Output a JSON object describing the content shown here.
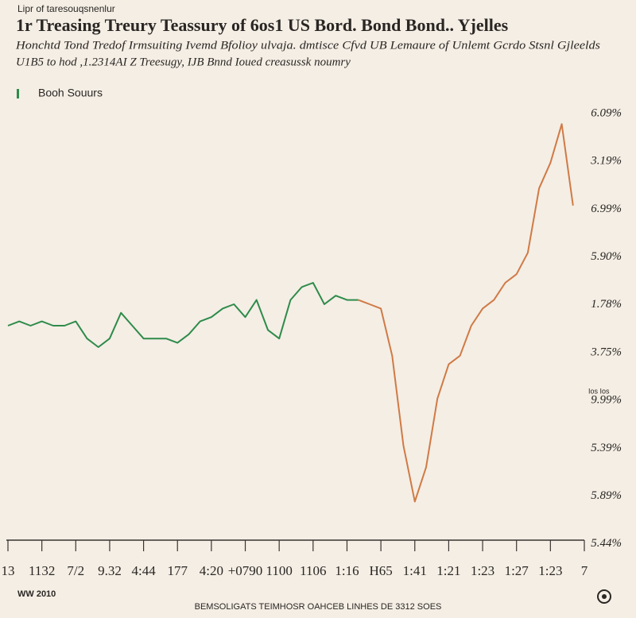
{
  "chart_data": {
    "type": "line",
    "kicker": "Lipr of taresouqsnenlur",
    "title": "1r Treasing Treury Teassury of 6os1 US Bord. Bond Bond.. Yjelles",
    "subtitle": [
      "Honchtd Tond Tredof Irmsuiting Ivemd Bfolioy ulvaja. dmtisce Cfvd UB Lemaure of Unlemt Gcrdo Stsnl Gjleelds",
      "U1B5 to hod ,1.2314AI Z Treesugy, IJB Bnnd Ioued creasussk noumry"
    ],
    "x": [
      0,
      1,
      2,
      3,
      4,
      5,
      6,
      7,
      8,
      9,
      10,
      11,
      12,
      13,
      14,
      15,
      16,
      17,
      18,
      19,
      20,
      21,
      22,
      23,
      24,
      25,
      26,
      27,
      28,
      29,
      30,
      31,
      32,
      33,
      34,
      35,
      36,
      37,
      38,
      39,
      40,
      41,
      42,
      43,
      44,
      45,
      46,
      47,
      48,
      49,
      50
    ],
    "series": [
      {
        "name": "Booh Souurs",
        "color": "#2e8b4a",
        "values": [
          50,
          51,
          50,
          51,
          50,
          50,
          51,
          47,
          45,
          47,
          53,
          50,
          47,
          47,
          47,
          46,
          48,
          51,
          52,
          54,
          55,
          52,
          56,
          49,
          47,
          56,
          59,
          60,
          55,
          57,
          56,
          56,
          null,
          null,
          null,
          null,
          null,
          null,
          null,
          null,
          null,
          null,
          null,
          null,
          null,
          null,
          null,
          null,
          null,
          null,
          null
        ]
      },
      {
        "color": "#d07a45",
        "values": [
          null,
          null,
          null,
          null,
          null,
          null,
          null,
          null,
          null,
          null,
          null,
          null,
          null,
          null,
          null,
          null,
          null,
          null,
          null,
          null,
          null,
          null,
          null,
          null,
          null,
          null,
          null,
          null,
          null,
          null,
          null,
          56,
          55,
          54,
          43,
          22,
          9,
          17,
          33,
          41,
          43,
          50,
          54,
          56,
          60,
          62,
          67,
          82,
          88,
          97,
          78
        ]
      }
    ],
    "xlim": [
      0,
      51
    ],
    "ylim": [
      0,
      100
    ],
    "xticks": [
      {
        "value": 0,
        "label": "13"
      },
      {
        "value": 3,
        "label": "1132"
      },
      {
        "value": 6,
        "label": "7/2"
      },
      {
        "value": 9,
        "label": "9.32"
      },
      {
        "value": 12,
        "label": "4:44"
      },
      {
        "value": 15,
        "label": "177"
      },
      {
        "value": 18,
        "label": "4:20"
      },
      {
        "value": 21,
        "label": "+0790"
      },
      {
        "value": 24,
        "label": "1100"
      },
      {
        "value": 27,
        "label": "1106"
      },
      {
        "value": 30,
        "label": "1:16"
      },
      {
        "value": 33,
        "label": "H65"
      },
      {
        "value": 36,
        "label": "1:41"
      },
      {
        "value": 39,
        "label": "1:21"
      },
      {
        "value": 42,
        "label": "1:23"
      },
      {
        "value": 45,
        "label": "1:27"
      },
      {
        "value": 48,
        "label": "1:23"
      },
      {
        "value": 51,
        "label": "7"
      }
    ],
    "y_labels": [
      "6.09%",
      "3.19%",
      "6.99%",
      "5.90%",
      "1.78%",
      "3.75%",
      "9.99%",
      "5.39%",
      "5.89%",
      "5.44%"
    ],
    "annotation": "Ios Ios",
    "footer_left": "WW 2010",
    "footer_center": "BEMSOLIGATS TEIMHOSR OAHCEB LINHES DE 3312 SOES"
  }
}
